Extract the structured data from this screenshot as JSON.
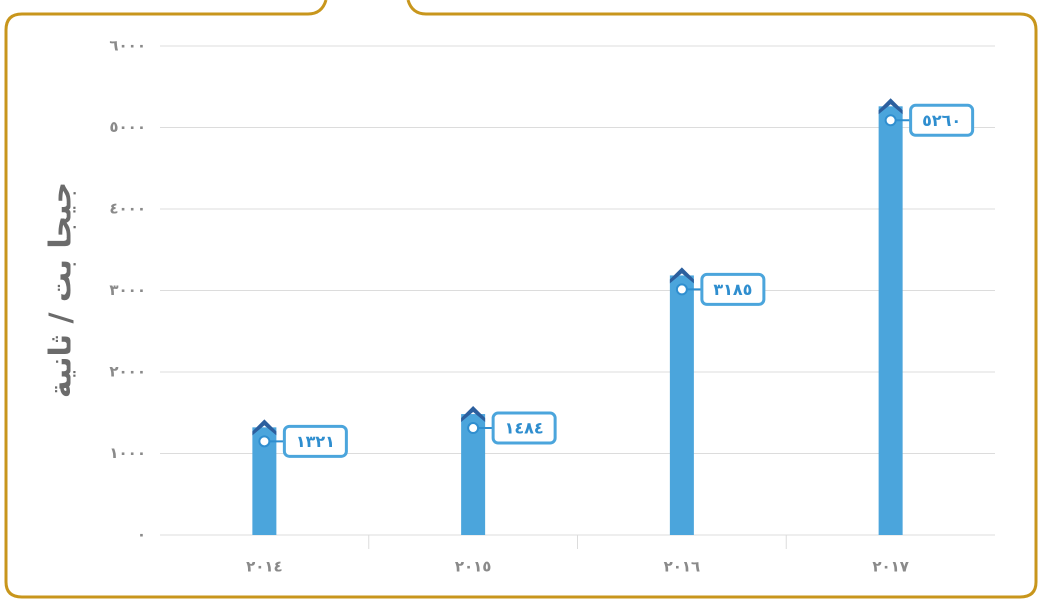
{
  "chart_data": {
    "type": "bar",
    "y_label": "جيجا بت / ثانية",
    "categories": [
      "٢٠١٤",
      "٢٠١٥",
      "٢٠١٦",
      "٢٠١٧"
    ],
    "values": [
      1321,
      1484,
      3185,
      5260
    ],
    "value_labels": [
      "١٣٢١",
      "١٤٨٤",
      "٣١٨٥",
      "٥٢٦٠"
    ],
    "color": "#4ba5dc",
    "ylim": [
      0,
      6000
    ],
    "yticks": [
      {
        "value": 0,
        "label": "٠"
      },
      {
        "value": 1000,
        "label": "١٠٠٠"
      },
      {
        "value": 2000,
        "label": "٢٠٠٠"
      },
      {
        "value": 3000,
        "label": "٣٠٠٠"
      },
      {
        "value": 4000,
        "label": "٤٠٠٠"
      },
      {
        "value": 5000,
        "label": "٥٠٠٠"
      },
      {
        "value": 6000,
        "label": "٦٠٠٠"
      }
    ],
    "grid": true
  }
}
